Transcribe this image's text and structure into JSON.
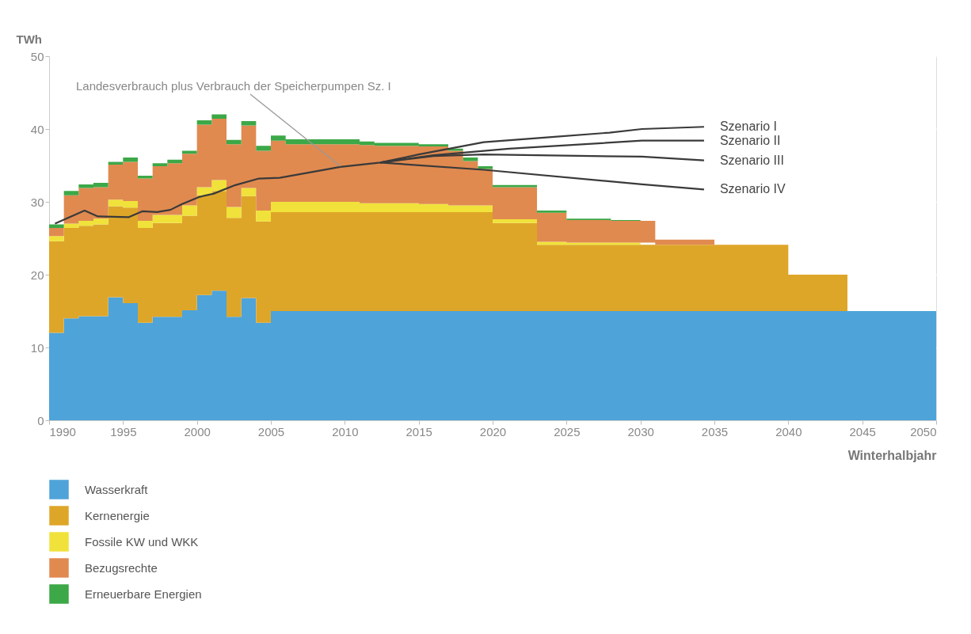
{
  "chart_data": {
    "type": "area",
    "stacked": true,
    "ylabel": "TWh",
    "xlabel": "Winterhalbjahr",
    "xlim": [
      1990,
      2050
    ],
    "xticks": [
      1990,
      1995,
      2000,
      2005,
      2010,
      2015,
      2020,
      2025,
      2030,
      2035,
      2040,
      2045,
      2050
    ],
    "ylim": [
      0,
      50
    ],
    "yticks": [
      0,
      10,
      20,
      30,
      40,
      50
    ],
    "grid": "y",
    "legend": "bottom left",
    "marker": "none",
    "line_style": "solid",
    "annotations": [
      {
        "text": "Landesverbrauch plus Verbrauch der Speicherpumpen Sz. I",
        "x": 2009.7,
        "y": 34.9
      }
    ],
    "x": [
      1990,
      1991,
      1992,
      1993,
      1994,
      1995,
      1996,
      1997,
      1998,
      1999,
      2000,
      2001,
      2002,
      2003,
      2004,
      2005,
      2006,
      2007,
      2008,
      2009,
      2010,
      2011,
      2012,
      2013,
      2014,
      2015,
      2016,
      2017,
      2018,
      2019,
      2020,
      2021,
      2022,
      2023,
      2024,
      2025,
      2026,
      2027,
      2028,
      2029,
      2030,
      2031,
      2032,
      2033,
      2034,
      2035,
      2036,
      2037,
      2038,
      2039,
      2040,
      2041,
      2042,
      2043,
      2044,
      2045,
      2046,
      2047,
      2048,
      2049,
      2050
    ],
    "series": [
      {
        "name": "Wasserkraft",
        "color": "#4ea3d9",
        "values": [
          12.0,
          14.0,
          14.3,
          14.3,
          16.9,
          16.1,
          13.4,
          14.2,
          14.2,
          15.1,
          17.2,
          17.8,
          14.2,
          16.8,
          13.4,
          15.0,
          15.0,
          15.0,
          15.0,
          15.0,
          15.0,
          15.0,
          15.0,
          15.0,
          15.0,
          15.0,
          15.0,
          15.0,
          15.0,
          15.0,
          15.0,
          15.0,
          15.0,
          15.0,
          15.0,
          15.0,
          15.0,
          15.0,
          15.0,
          15.0,
          15.0,
          15.0,
          15.0,
          15.0,
          15.0,
          15.0,
          15.0,
          15.0,
          15.0,
          15.0,
          15.0,
          15.0,
          15.0,
          15.0,
          15.0,
          15.0,
          15.0,
          15.0,
          15.0,
          15.0,
          15.0
        ]
      },
      {
        "name": "Kernenergie",
        "color": "#dea628",
        "values": [
          12.6,
          12.4,
          12.4,
          12.6,
          12.5,
          13.1,
          13.0,
          12.9,
          12.9,
          13.0,
          13.7,
          13.7,
          13.6,
          14.0,
          13.9,
          13.6,
          13.6,
          13.6,
          13.6,
          13.6,
          13.6,
          13.6,
          13.6,
          13.6,
          13.6,
          13.6,
          13.6,
          13.6,
          13.6,
          13.6,
          12.1,
          12.1,
          12.1,
          9.1,
          9.1,
          9.1,
          9.1,
          9.1,
          9.1,
          9.1,
          9.1,
          9.1,
          9.1,
          9.1,
          9.1,
          9.1,
          9.1,
          9.1,
          9.1,
          9.1,
          5.0,
          5.0,
          5.0,
          5.0,
          5.0,
          null,
          null,
          null,
          null,
          null,
          null
        ]
      },
      {
        "name": "Fossile KW und WKK",
        "color": "#f0e23a",
        "values": [
          0.7,
          0.6,
          0.7,
          0.8,
          0.9,
          0.9,
          1.0,
          1.1,
          1.1,
          1.4,
          1.1,
          1.5,
          1.5,
          1.1,
          1.5,
          1.4,
          1.4,
          1.4,
          1.4,
          1.4,
          1.4,
          1.2,
          1.2,
          1.2,
          1.2,
          1.1,
          1.1,
          0.9,
          0.9,
          0.9,
          0.5,
          0.5,
          0.5,
          0.4,
          0.4,
          0.3,
          0.3,
          0.3,
          0.3,
          0.3,
          0.3,
          null,
          null,
          null,
          null,
          null,
          null,
          null,
          null,
          null,
          null,
          null,
          null,
          null,
          null,
          null,
          null,
          null,
          null,
          null,
          null
        ]
      },
      {
        "name": "Bezugsrechte",
        "color": "#e08a50",
        "values": [
          1.1,
          3.9,
          4.5,
          4.3,
          4.8,
          5.4,
          5.8,
          6.7,
          7.1,
          7.1,
          8.6,
          8.4,
          8.6,
          8.6,
          8.2,
          8.4,
          7.9,
          7.9,
          7.9,
          7.9,
          7.9,
          8.0,
          7.9,
          7.9,
          7.9,
          7.9,
          7.9,
          7.5,
          6.1,
          5.0,
          4.4,
          4.4,
          4.4,
          4.0,
          4.0,
          3.1,
          3.1,
          3.1,
          3.0,
          3.0,
          3.0,
          0.7,
          0.7,
          0.7,
          0.7,
          0.3,
          null,
          null,
          null,
          null,
          null,
          null,
          null,
          null,
          null,
          null,
          null,
          null,
          null,
          null,
          null
        ]
      },
      {
        "name": "Erneuerbare Energien",
        "color": "#3ca847",
        "values": [
          0.5,
          0.6,
          0.5,
          0.6,
          0.4,
          0.6,
          0.4,
          0.4,
          0.5,
          0.4,
          0.6,
          0.6,
          0.6,
          0.6,
          0.7,
          0.7,
          0.7,
          0.7,
          0.7,
          0.7,
          0.7,
          0.5,
          0.4,
          0.4,
          0.4,
          0.3,
          0.3,
          0.3,
          0.5,
          0.4,
          0.3,
          0.3,
          0.3,
          0.3,
          0.3,
          0.2,
          0.2,
          0.2,
          0.1,
          0.1,
          0.1,
          null,
          null,
          null,
          null,
          null,
          null,
          null,
          null,
          null,
          null,
          null,
          null,
          null,
          null,
          null,
          null,
          null,
          null,
          null,
          null
        ]
      },
      {
        "type": "line",
        "name": "Szenario I",
        "color": "#3a3a3a",
        "x": [
          1990.4,
          1992.4,
          1993.3,
          1995.4,
          1996.3,
          1997.3,
          1998.2,
          1999.0,
          2000.2,
          2001.1,
          2002.6,
          2004.2,
          2005.6,
          2009.7,
          2012.4,
          2015,
          2019.4,
          2024,
          2027.9,
          2030.1,
          2034.3
        ],
        "values": [
          27.0,
          28.8,
          28.0,
          27.9,
          28.7,
          28.6,
          28.9,
          29.7,
          30.7,
          31.1,
          32.3,
          33.2,
          33.3,
          34.8,
          35.4,
          36.5,
          38.2,
          38.9,
          39.5,
          40.0,
          40.3
        ]
      },
      {
        "type": "line",
        "name": "Szenario II",
        "color": "#3a3a3a",
        "x": [
          2012.4,
          2016,
          2021.1,
          2030.1,
          2034.3
        ],
        "values": [
          35.4,
          36.4,
          37.3,
          38.4,
          38.4
        ]
      },
      {
        "type": "line",
        "name": "Szenario III",
        "color": "#3a3a3a",
        "x": [
          2012.4,
          2016,
          2019.4,
          2030.1,
          2034.3
        ],
        "values": [
          35.4,
          36.3,
          36.5,
          36.2,
          35.7
        ]
      },
      {
        "type": "line",
        "name": "Szenario IV",
        "color": "#3a3a3a",
        "x": [
          2012.4,
          2019.4,
          2030.1,
          2034.3
        ],
        "values": [
          35.4,
          34.4,
          32.4,
          31.7
        ]
      }
    ]
  }
}
